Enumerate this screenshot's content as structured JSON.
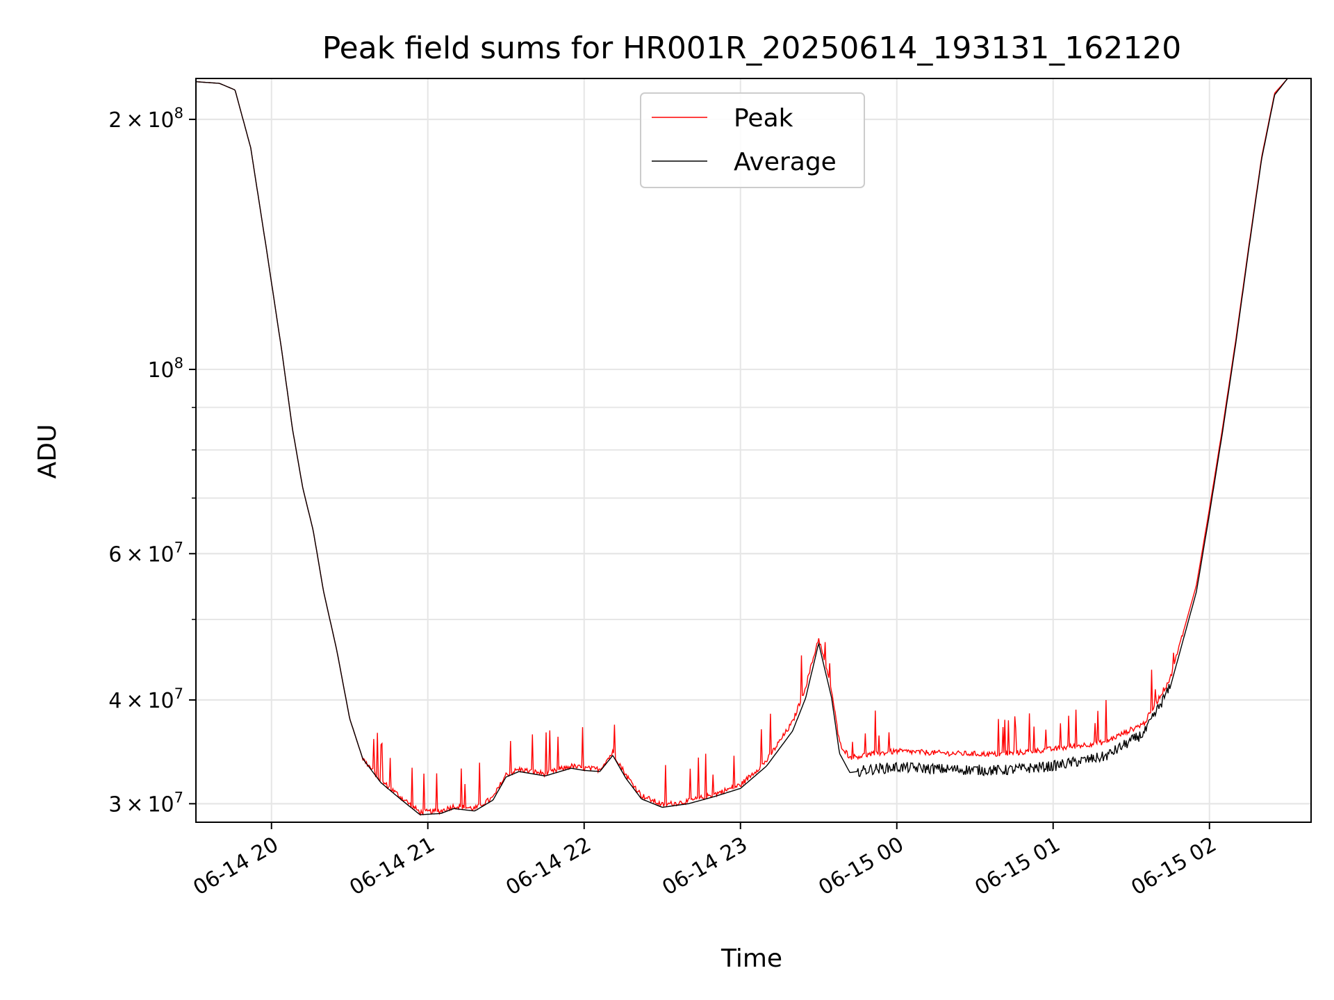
{
  "chart_data": {
    "type": "line",
    "title": "Peak field sums for HR001R_20250614_193131_162120",
    "xlabel": "Time",
    "ylabel": "ADU",
    "x_ticks": [
      "06-14 20",
      "06-14 21",
      "06-14 22",
      "06-14 23",
      "06-15 00",
      "06-15 01",
      "06-15 02"
    ],
    "y_ticks": [
      {
        "value": 30000000,
        "mantissa": "3",
        "exp": "7"
      },
      {
        "value": 40000000,
        "mantissa": "4",
        "exp": "7"
      },
      {
        "value": 60000000,
        "mantissa": "6",
        "exp": "7"
      },
      {
        "value": 100000000,
        "mantissa": "",
        "exp": "8"
      },
      {
        "value": 200000000,
        "mantissa": "2",
        "exp": "8"
      }
    ],
    "y_scale": "log",
    "ylim": [
      28500000,
      224000000
    ],
    "xlim": [
      "2025-06-14 19:31",
      "2025-06-15 02:39"
    ],
    "grid": true,
    "legend_position": "upper center",
    "series": [
      {
        "name": "Peak",
        "color": "#ff0000",
        "noise": true,
        "points": [
          [
            "2025-06-14 19:31",
            222000000
          ],
          [
            "2025-06-14 19:40",
            221000000
          ],
          [
            "2025-06-14 19:46",
            217000000
          ],
          [
            "2025-06-14 19:52",
            185000000
          ],
          [
            "2025-06-14 19:58",
            140000000
          ],
          [
            "2025-06-14 20:04",
            105000000
          ],
          [
            "2025-06-14 20:08",
            85000000
          ],
          [
            "2025-06-14 20:12",
            72000000
          ],
          [
            "2025-06-14 20:16",
            64000000
          ],
          [
            "2025-06-14 20:20",
            54000000
          ],
          [
            "2025-06-14 20:25",
            46000000
          ],
          [
            "2025-06-14 20:30",
            38000000
          ],
          [
            "2025-06-14 20:35",
            34000000
          ],
          [
            "2025-06-14 20:42",
            32000000
          ],
          [
            "2025-06-14 20:50",
            30500000
          ],
          [
            "2025-06-14 20:57",
            29300000
          ],
          [
            "2025-06-14 21:05",
            29400000
          ],
          [
            "2025-06-14 21:10",
            29800000
          ],
          [
            "2025-06-14 21:18",
            29600000
          ],
          [
            "2025-06-14 21:25",
            30500000
          ],
          [
            "2025-06-14 21:30",
            32500000
          ],
          [
            "2025-06-14 21:35",
            33000000
          ],
          [
            "2025-06-14 21:45",
            32600000
          ],
          [
            "2025-06-14 21:55",
            33300000
          ],
          [
            "2025-06-14 22:00",
            33100000
          ],
          [
            "2025-06-14 22:06",
            33000000
          ],
          [
            "2025-06-14 22:11",
            34600000
          ],
          [
            "2025-06-14 22:16",
            32500000
          ],
          [
            "2025-06-14 22:22",
            30700000
          ],
          [
            "2025-06-14 22:30",
            29900000
          ],
          [
            "2025-06-14 22:40",
            30200000
          ],
          [
            "2025-06-14 22:50",
            30800000
          ],
          [
            "2025-06-14 23:00",
            31600000
          ],
          [
            "2025-06-14 23:10",
            33800000
          ],
          [
            "2025-06-14 23:20",
            37600000
          ],
          [
            "2025-06-14 23:25",
            41500000
          ],
          [
            "2025-06-14 23:30",
            47500000
          ],
          [
            "2025-06-14 23:35",
            41000000
          ],
          [
            "2025-06-14 23:38",
            35500000
          ],
          [
            "2025-06-14 23:42",
            34100000
          ],
          [
            "2025-06-14 23:50",
            34400000
          ],
          [
            "2025-06-15 00:00",
            34700000
          ],
          [
            "2025-06-15 00:20",
            34500000
          ],
          [
            "2025-06-15 00:40",
            34400000
          ],
          [
            "2025-06-15 01:00",
            34900000
          ],
          [
            "2025-06-15 01:20",
            35600000
          ],
          [
            "2025-06-15 01:35",
            37500000
          ],
          [
            "2025-06-15 01:45",
            42500000
          ],
          [
            "2025-06-15 01:55",
            55000000
          ],
          [
            "2025-06-15 02:00",
            68000000
          ],
          [
            "2025-06-15 02:05",
            85000000
          ],
          [
            "2025-06-15 02:10",
            108000000
          ],
          [
            "2025-06-15 02:15",
            140000000
          ],
          [
            "2025-06-15 02:20",
            180000000
          ],
          [
            "2025-06-15 02:25",
            215000000
          ],
          [
            "2025-06-15 02:30",
            224000000
          ],
          [
            "2025-06-15 02:39",
            224000000
          ]
        ]
      },
      {
        "name": "Average",
        "color": "#000000",
        "noise": false,
        "points": [
          [
            "2025-06-14 19:31",
            222000000
          ],
          [
            "2025-06-14 19:40",
            221000000
          ],
          [
            "2025-06-14 19:46",
            217000000
          ],
          [
            "2025-06-14 19:52",
            185000000
          ],
          [
            "2025-06-14 19:58",
            140000000
          ],
          [
            "2025-06-14 20:04",
            105000000
          ],
          [
            "2025-06-14 20:08",
            85000000
          ],
          [
            "2025-06-14 20:12",
            72000000
          ],
          [
            "2025-06-14 20:16",
            64000000
          ],
          [
            "2025-06-14 20:20",
            54000000
          ],
          [
            "2025-06-14 20:25",
            46000000
          ],
          [
            "2025-06-14 20:30",
            38000000
          ],
          [
            "2025-06-14 20:35",
            34000000
          ],
          [
            "2025-06-14 20:42",
            31800000
          ],
          [
            "2025-06-14 20:50",
            30300000
          ],
          [
            "2025-06-14 20:57",
            29100000
          ],
          [
            "2025-06-14 21:05",
            29200000
          ],
          [
            "2025-06-14 21:10",
            29600000
          ],
          [
            "2025-06-14 21:18",
            29400000
          ],
          [
            "2025-06-14 21:25",
            30300000
          ],
          [
            "2025-06-14 21:30",
            32300000
          ],
          [
            "2025-06-14 21:35",
            32800000
          ],
          [
            "2025-06-14 21:45",
            32400000
          ],
          [
            "2025-06-14 21:55",
            33100000
          ],
          [
            "2025-06-14 22:00",
            32900000
          ],
          [
            "2025-06-14 22:06",
            32800000
          ],
          [
            "2025-06-14 22:11",
            34300000
          ],
          [
            "2025-06-14 22:16",
            32200000
          ],
          [
            "2025-06-14 22:22",
            30400000
          ],
          [
            "2025-06-14 22:30",
            29700000
          ],
          [
            "2025-06-14 22:40",
            30000000
          ],
          [
            "2025-06-14 22:50",
            30600000
          ],
          [
            "2025-06-14 23:00",
            31300000
          ],
          [
            "2025-06-14 23:10",
            33300000
          ],
          [
            "2025-06-14 23:20",
            36700000
          ],
          [
            "2025-06-14 23:25",
            40200000
          ],
          [
            "2025-06-14 23:30",
            46800000
          ],
          [
            "2025-06-14 23:35",
            40200000
          ],
          [
            "2025-06-14 23:38",
            34500000
          ],
          [
            "2025-06-14 23:42",
            32700000
          ],
          [
            "2025-06-14 23:50",
            33000000
          ],
          [
            "2025-06-15 00:00",
            33200000
          ],
          [
            "2025-06-15 00:20",
            33000000
          ],
          [
            "2025-06-15 00:40",
            32900000
          ],
          [
            "2025-06-15 01:00",
            33300000
          ],
          [
            "2025-06-15 01:20",
            34200000
          ],
          [
            "2025-06-15 01:35",
            36500000
          ],
          [
            "2025-06-15 01:45",
            41500000
          ],
          [
            "2025-06-15 01:55",
            54000000
          ],
          [
            "2025-06-15 02:00",
            67000000
          ],
          [
            "2025-06-15 02:05",
            84000000
          ],
          [
            "2025-06-15 02:10",
            107000000
          ],
          [
            "2025-06-15 02:15",
            139000000
          ],
          [
            "2025-06-15 02:20",
            179000000
          ],
          [
            "2025-06-15 02:25",
            214000000
          ],
          [
            "2025-06-15 02:30",
            224000000
          ],
          [
            "2025-06-15 02:39",
            224000000
          ]
        ]
      }
    ]
  }
}
